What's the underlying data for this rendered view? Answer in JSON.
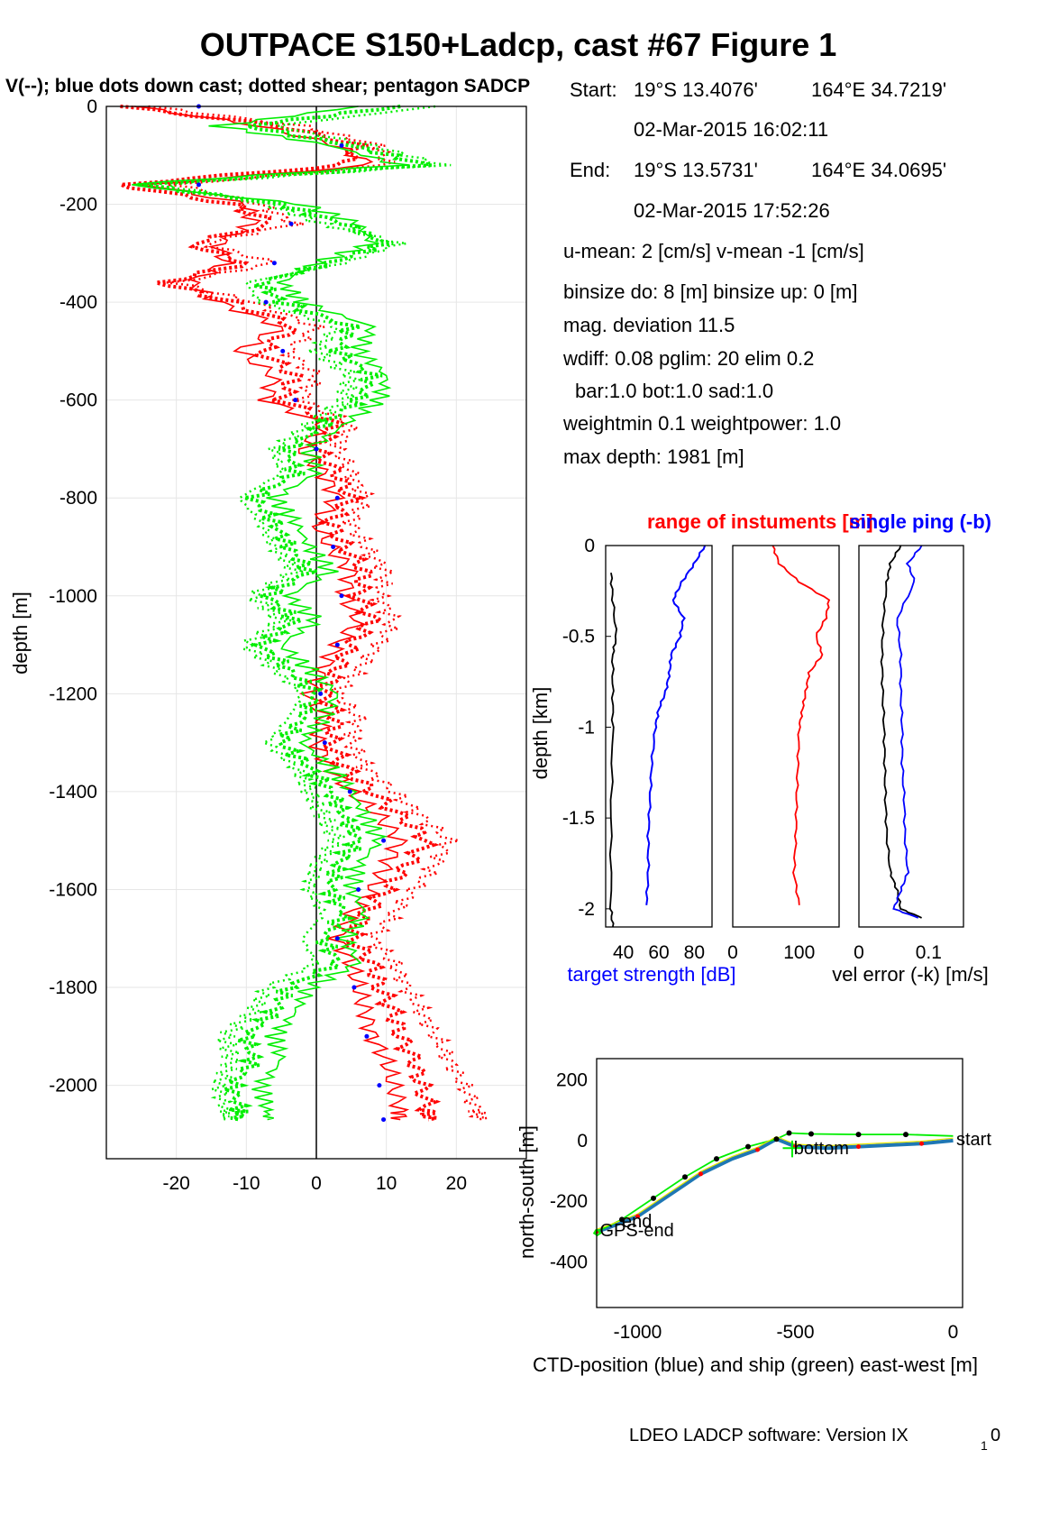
{
  "header": {
    "title": "OUTPACE S150+Ladcp, cast #67  Figure 1",
    "subtitle": "V(--); blue dots down cast; dotted shear; pentagon SADCP",
    "footer_main": "LDEO LADCP software: Version IX",
    "footer_sub": "1",
    "footer_tail": "0"
  },
  "info": {
    "start_label": "Start:",
    "start_lat": "19°S 13.4076'",
    "start_lon": "164°E 34.7219'",
    "start_time": "02-Mar-2015 16:02:11",
    "end_label": "End:",
    "end_lat": "19°S 13.5731'",
    "end_lon": "164°E 34.0695'",
    "end_time": "02-Mar-2015 17:52:26",
    "umean": "u-mean:   2 [cm/s]    v-mean  -1 [cm/s]",
    "binsize": "binsize do: 8 [m]  binsize up:  0 [m]",
    "magdev": "mag. deviation 11.5",
    "wdiff": "wdiff: 0.08  pglim: 20  elim 0.2",
    "bar": "bar:1.0 bot:1.0 sad:1.0",
    "weight": "weightmin 0.1  weightpower: 1.0",
    "maxdepth": "max depth: 1981 [m]"
  },
  "colors": {
    "red": "#ff0000",
    "green": "#00ee00",
    "blue": "#0000ff",
    "dblue": "#1f77b4",
    "black": "#000000",
    "grid": "#e6e6e6",
    "yellow": "#e8e800"
  },
  "chart_data": [
    {
      "type": "line",
      "name": "velocity_profile",
      "ylabel": "depth [m]",
      "xlim": [
        -30,
        30
      ],
      "ylim": [
        -2150,
        0
      ],
      "xticks": [
        -20,
        -10,
        0,
        10,
        20
      ],
      "yticks": [
        0,
        -200,
        -400,
        -600,
        -800,
        -1000,
        -1200,
        -1400,
        -1600,
        -1800,
        -2000
      ],
      "grid": true,
      "series": [
        {
          "color": "red",
          "depth": [
            0,
            -40,
            -80,
            -120,
            -160,
            -200,
            -240,
            -280,
            -320,
            -360,
            -400,
            -450,
            -500,
            -550,
            -600,
            -650,
            -700,
            -750,
            -800,
            -850,
            -900,
            -950,
            -1000,
            -1050,
            -1100,
            -1150,
            -1200,
            -1250,
            -1300,
            -1350,
            -1400,
            -1450,
            -1500,
            -1550,
            -1600,
            -1650,
            -1700,
            -1750,
            -1800,
            -1850,
            -1900,
            -1950,
            -2000,
            -2050,
            -2070
          ],
          "values": [
            -28,
            -5,
            6,
            4,
            -28,
            -12,
            -6,
            -18,
            -10,
            -22,
            -12,
            -3,
            -8,
            -3,
            -5,
            3,
            0,
            3,
            5,
            2,
            4,
            7,
            6,
            8,
            5,
            3,
            1,
            3,
            2,
            4,
            8,
            12,
            16,
            13,
            10,
            7,
            5,
            8,
            9,
            11,
            12,
            14,
            15,
            16,
            16
          ]
        },
        {
          "color": "red",
          "depth": [
            0,
            -40,
            -80,
            -120,
            -160,
            -200,
            -240,
            -280,
            -320,
            -360,
            -400,
            -450,
            -500,
            -550,
            -600,
            -650,
            -700,
            -750,
            -800,
            -850,
            -900,
            -950,
            -1000,
            -1050,
            -1100,
            -1150,
            -1200,
            -1250,
            -1300,
            -1350,
            -1400,
            -1450,
            -1500,
            -1550,
            -1600,
            -1650,
            -1700,
            -1750,
            -1800,
            -1850,
            -1900,
            -1950,
            -2000,
            -2050,
            -2070
          ],
          "values": [
            -26,
            -8,
            3,
            8,
            -24,
            -10,
            -9,
            -14,
            -13,
            -18,
            -14,
            -5,
            -11,
            -6,
            -7,
            1,
            -2,
            1,
            3,
            0,
            2,
            5,
            4,
            6,
            3,
            1,
            -1,
            1,
            0,
            2,
            5,
            9,
            12,
            10,
            8,
            5,
            3,
            5,
            6,
            7,
            8,
            10,
            11,
            12,
            12
          ]
        },
        {
          "color": "red",
          "depth": [
            0,
            -40,
            -80,
            -120,
            -160,
            -200,
            -240,
            -280,
            -320,
            -360,
            -400,
            -450,
            -500,
            -550,
            -600,
            -650,
            -700,
            -750,
            -800,
            -850,
            -900,
            -950,
            -1000,
            -1050,
            -1100,
            -1150,
            -1200,
            -1250,
            -1300,
            -1350,
            -1400,
            -1450,
            -1500,
            -1550,
            -1600,
            -1650,
            -1700,
            -1750,
            -1800,
            -1850,
            -1900,
            -1950,
            -2000,
            -2050,
            -2070
          ],
          "values": [
            -24,
            -2,
            9,
            10,
            -20,
            -8,
            -3,
            -16,
            -6,
            -20,
            -9,
            0,
            -4,
            0,
            -2,
            5,
            3,
            5,
            7,
            5,
            7,
            10,
            9,
            11,
            9,
            6,
            3,
            6,
            5,
            7,
            11,
            15,
            19,
            17,
            14,
            11,
            8,
            11,
            13,
            15,
            17,
            19,
            21,
            23,
            23
          ]
        },
        {
          "color": "green",
          "depth": [
            0,
            -40,
            -80,
            -120,
            -160,
            -200,
            -240,
            -280,
            -320,
            -360,
            -400,
            -450,
            -500,
            -550,
            -600,
            -650,
            -700,
            -750,
            -800,
            -850,
            -900,
            -950,
            -1000,
            -1050,
            -1100,
            -1150,
            -1200,
            -1250,
            -1300,
            -1350,
            -1400,
            -1450,
            -1500,
            -1550,
            -1600,
            -1650,
            -1700,
            -1750,
            -1800,
            -1850,
            -1900,
            -1950,
            -2000,
            -2050,
            -2070
          ],
          "values": [
            12,
            -10,
            5,
            16,
            -25,
            -5,
            4,
            10,
            2,
            -8,
            -5,
            5,
            3,
            8,
            6,
            1,
            -4,
            -3,
            -9,
            -6,
            -4,
            -1,
            -7,
            -3,
            -8,
            -4,
            0,
            -2,
            -5,
            -1,
            2,
            4,
            6,
            3,
            2,
            4,
            1,
            3,
            -4,
            -6,
            -10,
            -9,
            -12,
            -11,
            -11
          ]
        },
        {
          "color": "green",
          "depth": [
            0,
            -40,
            -80,
            -120,
            -160,
            -200,
            -240,
            -280,
            -320,
            -360,
            -400,
            -450,
            -500,
            -550,
            -600,
            -650,
            -700,
            -750,
            -800,
            -850,
            -900,
            -950,
            -1000,
            -1050,
            -1100,
            -1150,
            -1200,
            -1250,
            -1300,
            -1350,
            -1400,
            -1450,
            -1500,
            -1550,
            -1600,
            -1650,
            -1700,
            -1750,
            -1800,
            -1850,
            -1900,
            -1950,
            -2000,
            -2050,
            -2070
          ],
          "values": [
            6,
            -14,
            2,
            12,
            -27,
            -2,
            6,
            8,
            0,
            -5,
            -2,
            8,
            6,
            10,
            9,
            4,
            -1,
            0,
            -6,
            -3,
            -1,
            2,
            -4,
            0,
            -5,
            -1,
            3,
            1,
            -2,
            2,
            5,
            7,
            9,
            6,
            5,
            7,
            4,
            6,
            -1,
            -3,
            -6,
            -5,
            -8,
            -7,
            -7
          ]
        },
        {
          "color": "green",
          "depth": [
            0,
            -40,
            -80,
            -120,
            -160,
            -200,
            -240,
            -280,
            -320,
            -360,
            -400,
            -450,
            -500,
            -550,
            -600,
            -650,
            -700,
            -750,
            -800,
            -850,
            -900,
            -950,
            -1000,
            -1050,
            -1100,
            -1150,
            -1200,
            -1250,
            -1300,
            -1350,
            -1400,
            -1450,
            -1500,
            -1550,
            -1600,
            -1650,
            -1700,
            -1750,
            -1800,
            -1850,
            -1900,
            -1950,
            -2000,
            -2050,
            -2070
          ],
          "values": [
            17,
            -6,
            8,
            18,
            -22,
            -7,
            1,
            12,
            4,
            -10,
            -8,
            3,
            0,
            5,
            4,
            -1,
            -6,
            -5,
            -11,
            -8,
            -6,
            -3,
            -9,
            -5,
            -10,
            -6,
            -2,
            -4,
            -7,
            -3,
            -1,
            1,
            3,
            0,
            -1,
            1,
            -2,
            0,
            -7,
            -9,
            -13,
            -12,
            -14,
            -13,
            -13
          ]
        }
      ]
    },
    {
      "type": "line",
      "name": "target_strength",
      "ylabel": "depth [km]",
      "xlabel": "target strength [dB]",
      "xlim": [
        30,
        90
      ],
      "ylim": [
        -2.1,
        0
      ],
      "xticks": [
        40,
        60,
        80
      ],
      "yticks": [
        0,
        -0.5,
        -1,
        -1.5,
        -2
      ],
      "series": [
        {
          "color": "blue",
          "depth": [
            0,
            -0.1,
            -0.2,
            -0.3,
            -0.4,
            -0.5,
            -0.6,
            -0.7,
            -0.8,
            -0.9,
            -1.0,
            -1.2,
            -1.4,
            -1.6,
            -1.8,
            -1.98
          ],
          "values": [
            86,
            80,
            73,
            68,
            74,
            72,
            67,
            66,
            64,
            60,
            58,
            56,
            55,
            54,
            54,
            53
          ]
        },
        {
          "color": "black",
          "depth": [
            -0.15,
            -0.3,
            -0.5,
            -0.6,
            -0.8,
            -1.0,
            -1.5,
            -2.0,
            -2.1
          ],
          "values": [
            33,
            34,
            36,
            34,
            34,
            34,
            33,
            33,
            34
          ]
        }
      ]
    },
    {
      "type": "line",
      "name": "range_of_instruments",
      "title": "range of instuments [m]",
      "xlim": [
        0,
        160
      ],
      "ylim": [
        -2.1,
        0
      ],
      "xticks": [
        0,
        100
      ],
      "series": [
        {
          "color": "red",
          "depth": [
            0,
            -0.1,
            -0.2,
            -0.3,
            -0.4,
            -0.5,
            -0.6,
            -0.7,
            -0.8,
            -0.9,
            -1.0,
            -1.2,
            -1.4,
            -1.6,
            -1.8,
            -1.98
          ],
          "values": [
            60,
            70,
            100,
            145,
            140,
            125,
            135,
            115,
            110,
            105,
            100,
            98,
            96,
            95,
            92,
            100
          ]
        }
      ]
    },
    {
      "type": "line",
      "name": "vel_error",
      "title": "single ping (-b)",
      "xlabel": "vel error (-k) [m/s]",
      "xlim": [
        0,
        0.15
      ],
      "ylim": [
        -2.1,
        0
      ],
      "xticks": [
        0,
        0.1
      ],
      "series": [
        {
          "color": "black",
          "depth": [
            0,
            -0.1,
            -0.2,
            -0.4,
            -0.6,
            -0.8,
            -1.0,
            -1.2,
            -1.4,
            -1.6,
            -1.8,
            -1.9,
            -2.0,
            -2.05
          ],
          "values": [
            0.06,
            0.045,
            0.04,
            0.035,
            0.033,
            0.034,
            0.036,
            0.037,
            0.038,
            0.04,
            0.045,
            0.055,
            0.06,
            0.09
          ]
        },
        {
          "color": "blue",
          "depth": [
            0,
            -0.1,
            -0.2,
            -0.4,
            -0.6,
            -0.8,
            -1.0,
            -1.2,
            -1.4,
            -1.6,
            -1.8,
            -1.9,
            -2.0,
            -2.05
          ],
          "values": [
            0.09,
            0.07,
            0.08,
            0.055,
            0.06,
            0.06,
            0.062,
            0.062,
            0.065,
            0.066,
            0.07,
            0.06,
            0.05,
            0.085
          ]
        }
      ]
    },
    {
      "type": "line",
      "name": "positions",
      "xlabel": "CTD-position (blue) and ship (green) east-west [m]",
      "ylabel": "north-south [m]",
      "xlim": [
        -1130,
        30
      ],
      "ylim": [
        -550,
        270
      ],
      "xticks": [
        -1000,
        -500,
        0
      ],
      "yticks": [
        200,
        0,
        -200,
        -400
      ],
      "labels": {
        "start": "start",
        "bottom": "bottom",
        "end": "end",
        "gps_end": "GPS-end"
      },
      "series": [
        {
          "color": "dblue",
          "x": [
            0,
            -100,
            -200,
            -300,
            -400,
            -500,
            -560,
            -620,
            -700,
            -800,
            -900,
            -1000,
            -1100,
            -1130
          ],
          "y": [
            0,
            -10,
            -15,
            -20,
            -25,
            -20,
            5,
            -30,
            -60,
            -110,
            -180,
            -250,
            -290,
            -300
          ]
        },
        {
          "color": "green",
          "x": [
            0,
            -150,
            -300,
            -450,
            -520,
            -560,
            -650,
            -750,
            -850,
            -950,
            -1050,
            -1130
          ],
          "y": [
            15,
            20,
            20,
            22,
            25,
            5,
            -20,
            -60,
            -120,
            -190,
            -260,
            -300
          ]
        }
      ]
    }
  ]
}
